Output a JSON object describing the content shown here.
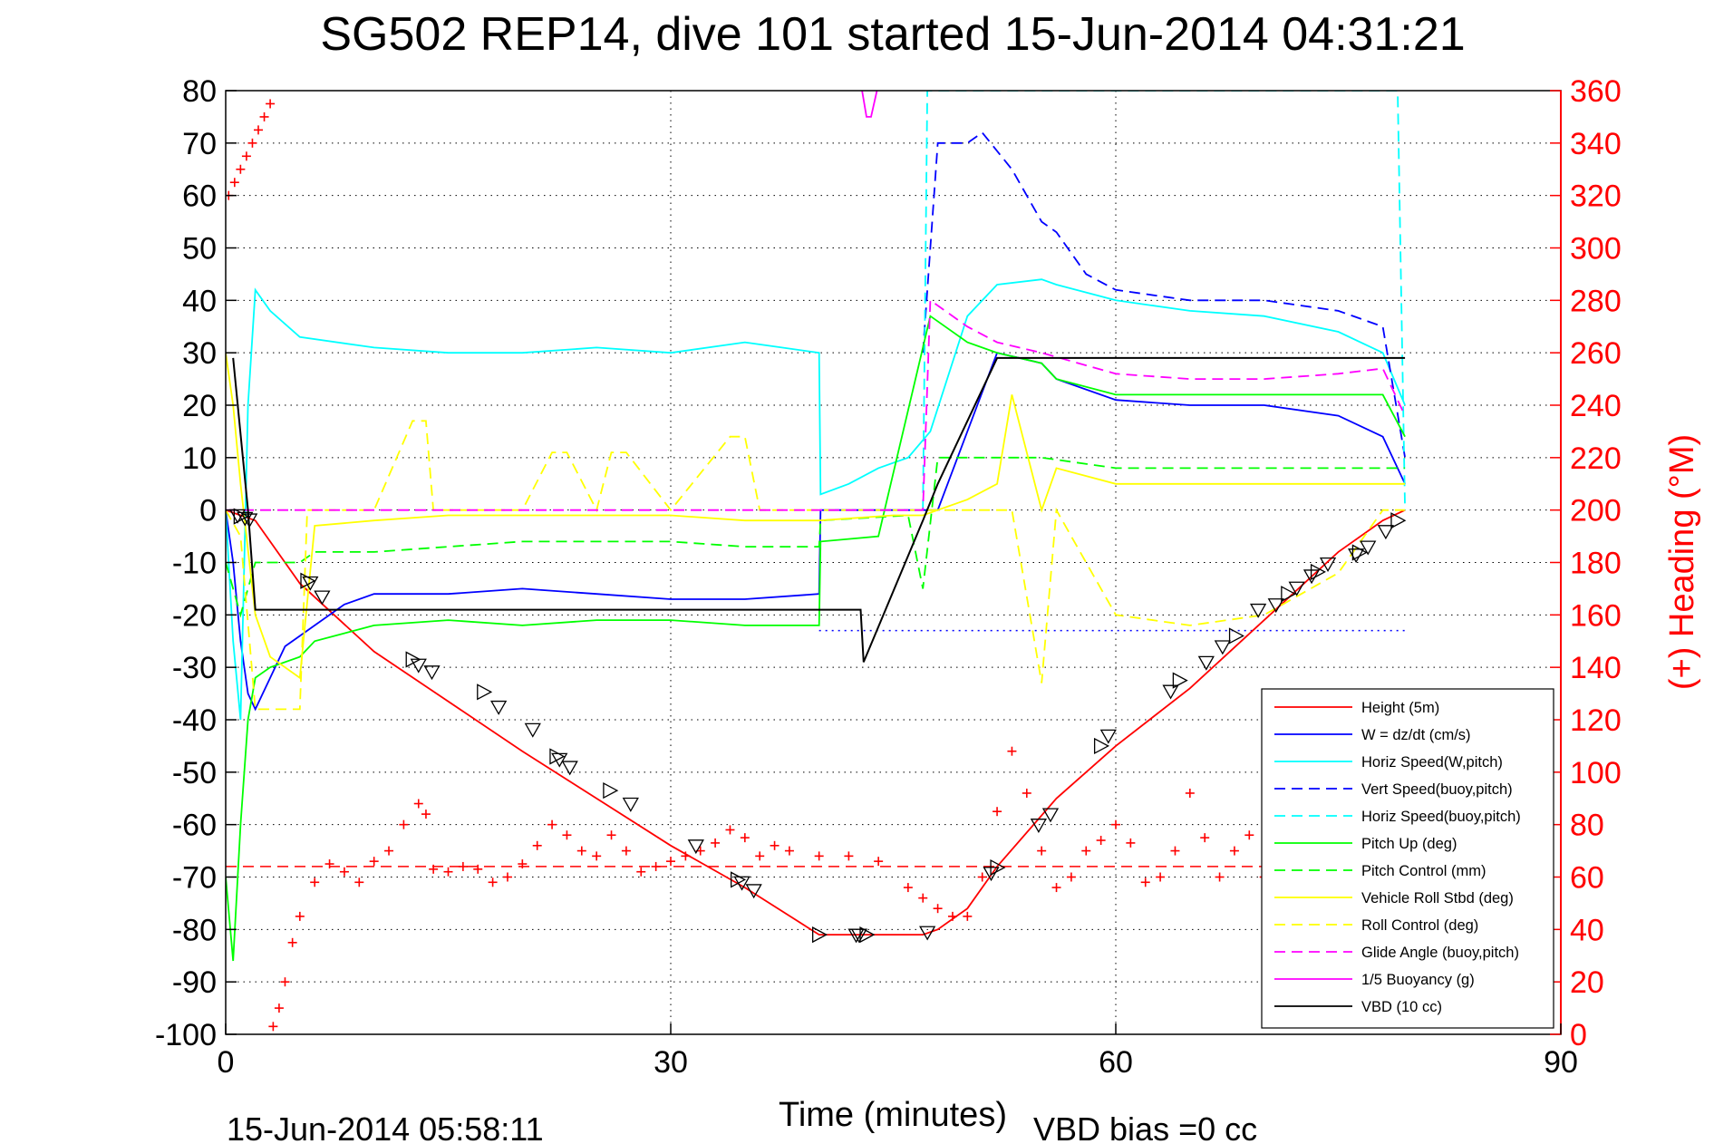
{
  "chart_data": {
    "type": "line",
    "title": "SG502 REP14, dive 101 started 15-Jun-2014 04:31:21",
    "xlabel": "Time (minutes)",
    "y2label": "(+) Heading (°M)",
    "footer_left": "15-Jun-2014 05:58:11",
    "footer_right": "VBD bias =0 cc",
    "xlim": [
      0,
      90
    ],
    "ylim": [
      -100,
      80
    ],
    "y2lim": [
      0,
      360
    ],
    "xticks": [
      "0",
      "30",
      "60",
      "90"
    ],
    "yticks": [
      "80",
      "70",
      "60",
      "50",
      "40",
      "30",
      "20",
      "10",
      "0",
      "-10",
      "-20",
      "-30",
      "-40",
      "-50",
      "-60",
      "-70",
      "-80",
      "-90",
      "-100"
    ],
    "y2ticks": [
      "360",
      "340",
      "320",
      "300",
      "280",
      "260",
      "240",
      "220",
      "200",
      "180",
      "160",
      "140",
      "120",
      "100",
      "80",
      "60",
      "40",
      "20",
      "0"
    ],
    "grid": true,
    "legend_position": "bottom-right",
    "colors": {
      "height": "#ff0000",
      "w": "#0000ff",
      "horiz": "#00ffff",
      "pitch": "#00ff00",
      "roll": "#ffff00",
      "glide": "#ff00ff",
      "vbd": "#000000"
    },
    "series": [
      {
        "name": "Height (5m)",
        "color": "#ff0000",
        "dash": "solid",
        "x": [
          0,
          1,
          2,
          5,
          10,
          20,
          30,
          35,
          40,
          45,
          47,
          48,
          50,
          52,
          56,
          60,
          65,
          70,
          75,
          78,
          79.5
        ],
        "y": [
          0,
          -1,
          -2,
          -14,
          -27,
          -46,
          -64,
          -72,
          -81,
          -81,
          -81,
          -80,
          -76,
          -68,
          -55,
          -45,
          -34,
          -21,
          -8,
          -2,
          0
        ]
      },
      {
        "name": "W = dz/dt (cm/s)",
        "color": "#0000ff",
        "dash": "solid",
        "x": [
          0,
          0.5,
          1,
          1.5,
          2,
          3,
          4,
          5,
          6,
          8,
          10,
          15,
          20,
          25,
          30,
          35,
          40,
          40.1,
          45,
          47,
          48,
          50,
          52,
          55,
          56,
          60,
          65,
          70,
          75,
          78,
          79.5
        ],
        "y": [
          0,
          -10,
          -25,
          -35,
          -38,
          -32,
          -26,
          -24,
          -22,
          -18,
          -16,
          -16,
          -15,
          -16,
          -17,
          -17,
          -16,
          0,
          0,
          0,
          0,
          15,
          30,
          28,
          25,
          21,
          20,
          20,
          18,
          14,
          5
        ]
      },
      {
        "name": "Horiz Speed(W,pitch)",
        "color": "#00ffff",
        "dash": "solid",
        "x": [
          0,
          0.5,
          1,
          1.5,
          2,
          3,
          5,
          10,
          15,
          20,
          25,
          30,
          35,
          40,
          40.1,
          42,
          44,
          46,
          47.5,
          50,
          52,
          55,
          56,
          60,
          65,
          70,
          75,
          78,
          79.5
        ],
        "y": [
          0,
          -25,
          -40,
          20,
          42,
          38,
          33,
          31,
          30,
          30,
          31,
          30,
          32,
          30,
          3,
          5,
          8,
          10,
          15,
          37,
          43,
          44,
          43,
          40,
          38,
          37,
          34,
          30,
          20
        ]
      },
      {
        "name": "Vert Speed(buoy,pitch)",
        "color": "#0000ff",
        "dash": "dashed",
        "x": [
          47,
          48,
          50,
          51,
          53,
          55,
          56,
          58,
          60,
          65,
          70,
          75,
          78,
          79.5
        ],
        "y": [
          30,
          70,
          70,
          72,
          65,
          55,
          53,
          45,
          42,
          40,
          40,
          38,
          35,
          10
        ]
      },
      {
        "name": "Horiz Speed(buoy,pitch)",
        "color": "#00ffff",
        "dash": "dashed",
        "x": [
          47,
          47.3,
          79,
          79.5
        ],
        "y": [
          0,
          80,
          80,
          0
        ]
      },
      {
        "name": "Pitch Up (deg)",
        "color": "#00ff00",
        "dash": "solid",
        "x": [
          0,
          0.5,
          1,
          1.5,
          2,
          3,
          5,
          6,
          10,
          15,
          20,
          25,
          30,
          35,
          40,
          40.1,
          44,
          47.5,
          50,
          52,
          55,
          56,
          60,
          65,
          70,
          75,
          78,
          79.5
        ],
        "y": [
          -70,
          -86,
          -60,
          -40,
          -32,
          -30,
          -28,
          -25,
          -22,
          -21,
          -22,
          -21,
          -21,
          -22,
          -22,
          -6,
          -5,
          37,
          32,
          30,
          28,
          25,
          22,
          22,
          22,
          22,
          22,
          14
        ]
      },
      {
        "name": "Pitch Control (mm)",
        "color": "#00ff00",
        "dash": "dashed",
        "x": [
          0,
          1,
          2,
          3,
          5,
          6,
          10,
          15,
          20,
          25,
          30,
          35,
          40,
          40.1,
          46,
          47,
          48,
          55,
          60,
          65,
          70,
          75,
          79.5
        ],
        "y": [
          -10,
          -20,
          -10,
          -10,
          -10,
          -8,
          -8,
          -7,
          -6,
          -6,
          -6,
          -7,
          -7,
          -2,
          -1,
          -15,
          10,
          10,
          8,
          8,
          8,
          8,
          8
        ]
      },
      {
        "name": "Vehicle Roll Stbd (deg)",
        "color": "#ffff00",
        "dash": "solid",
        "x": [
          0,
          0.5,
          1,
          2,
          3,
          5,
          6,
          10,
          15,
          20,
          25,
          30,
          35,
          40,
          45,
          47,
          50,
          52,
          53,
          55,
          56,
          60,
          65,
          70,
          75,
          78,
          79.5
        ],
        "y": [
          30,
          20,
          5,
          -20,
          -28,
          -32,
          -3,
          -2,
          -1,
          -1,
          -1,
          -1,
          -2,
          -2,
          -1,
          -1,
          2,
          5,
          22,
          0,
          8,
          5,
          5,
          5,
          5,
          5,
          5
        ]
      },
      {
        "name": "Roll Control (deg)",
        "color": "#ffff00",
        "dash": "dashed",
        "x": [
          0,
          1,
          2,
          5,
          5.5,
          10,
          12.6,
          13.5,
          14,
          20,
          22,
          23,
          25,
          26,
          27,
          30,
          34,
          35,
          36,
          40,
          45,
          52,
          53,
          55,
          56,
          60,
          65,
          70,
          75,
          78,
          79.5
        ],
        "y": [
          0,
          -5,
          -38,
          -38,
          0,
          0,
          17,
          17,
          0,
          0,
          11,
          11,
          0,
          11,
          11,
          0,
          14,
          14,
          0,
          0,
          0,
          0,
          0,
          -33,
          0,
          -20,
          -22,
          -20,
          -12,
          0,
          0
        ]
      },
      {
        "name": "Glide Angle (buoy,pitch)",
        "color": "#ff00ff",
        "dash": "dashed",
        "x": [
          0,
          47,
          47.5,
          50,
          52,
          55,
          60,
          65,
          70,
          75,
          78,
          79.5
        ],
        "y": [
          0,
          0,
          40,
          35,
          32,
          30,
          26,
          25,
          25,
          26,
          27,
          18
        ]
      },
      {
        "name": "1/5 Buoyancy (g)",
        "color": "#ff00ff",
        "dash": "solid",
        "x": [
          42.9,
          43.2,
          43.5,
          43.9
        ],
        "y": [
          80,
          75,
          75,
          80
        ]
      },
      {
        "name": "VBD (10 cc)",
        "color": "#000000",
        "dash": "solid",
        "x": [
          0.5,
          1.5,
          2,
          40,
          41,
          42.8,
          43,
          47,
          48,
          52,
          55,
          60,
          70,
          79.5
        ],
        "y": [
          29,
          0,
          -19,
          -19,
          -19,
          -19,
          -29,
          -2,
          5,
          29,
          29,
          29,
          29,
          29
        ]
      }
    ],
    "heading_series": {
      "name": "Heading",
      "color": "#ff0000",
      "marker": "+",
      "axis": "right",
      "x": [
        0.2,
        0.6,
        1.0,
        1.4,
        1.8,
        2.2,
        2.6,
        3.0,
        3.2,
        3.6,
        4.0,
        4.5,
        5,
        6,
        7,
        8,
        9,
        10,
        11,
        12,
        13,
        13.5,
        14,
        15,
        16,
        17,
        18,
        19,
        20,
        21,
        22,
        23,
        24,
        25,
        26,
        27,
        28,
        29,
        30,
        31,
        32,
        33,
        34,
        35,
        36,
        37,
        38,
        40,
        42,
        44,
        46,
        47,
        48,
        49,
        50,
        51,
        52,
        53,
        54,
        55,
        56,
        57,
        58,
        59,
        60,
        61,
        62,
        63,
        64,
        65,
        66,
        67,
        68,
        69,
        70
      ],
      "y": [
        320,
        325,
        330,
        335,
        340,
        345,
        350,
        355,
        3,
        10,
        20,
        35,
        45,
        58,
        65,
        62,
        58,
        66,
        70,
        80,
        88,
        84,
        63,
        62,
        64,
        63,
        58,
        60,
        65,
        72,
        80,
        76,
        70,
        68,
        76,
        70,
        62,
        64,
        66,
        68,
        70,
        73,
        78,
        75,
        68,
        72,
        70,
        68,
        68,
        66,
        56,
        52,
        48,
        45,
        45,
        60,
        85,
        108,
        92,
        70,
        56,
        60,
        70,
        74,
        80,
        73,
        58,
        60,
        70,
        92,
        75,
        60,
        70,
        76,
        60
      ]
    },
    "heading_reference": {
      "y": 64,
      "color": "#ff0000",
      "dash": "dashed",
      "axis": "right"
    },
    "w_reference": {
      "y": -23,
      "color": "#0000ff",
      "dash": "dotted"
    },
    "dive_markers": {
      "symbol": "triangle",
      "color": "#000000",
      "x": [
        0.8,
        1.0,
        1.3,
        1.6,
        5.5,
        5.7,
        6.5,
        12.6,
        13.0,
        13.9,
        17.4,
        18.4,
        20.7,
        22.3,
        22.5,
        23.2,
        25.9,
        27.3,
        31.7,
        34.5,
        34.8,
        35.6,
        40.0,
        42.5,
        42.7,
        43.2,
        47.3,
        51.6,
        52.0,
        54.8,
        55.6,
        59.0,
        59.5,
        63.7,
        64.3,
        66.1,
        67.2,
        68.1,
        69.6,
        70.8,
        71.6,
        72.2,
        73.2,
        73.6,
        74.3,
        76.2,
        76.4,
        77.0,
        78.2,
        79.0
      ],
      "y": [
        -1,
        -1.2,
        -1.5,
        -1.8,
        -13.5,
        -13.8,
        -16.5,
        -28.5,
        -29.5,
        -30.8,
        -34.7,
        -37.5,
        -41.8,
        -47,
        -47.5,
        -49,
        -53.5,
        -56,
        -64,
        -70.5,
        -71,
        -72.5,
        -81,
        -81,
        -81,
        -81,
        -80.5,
        -69.2,
        -68.2,
        -60,
        -58,
        -45,
        -43,
        -34.5,
        -32.5,
        -29,
        -26,
        -24,
        -19,
        -18,
        -16,
        -14.8,
        -12.5,
        -11.8,
        -10.2,
        -8.5,
        -8.1,
        -7,
        -4,
        -2
      ]
    }
  }
}
